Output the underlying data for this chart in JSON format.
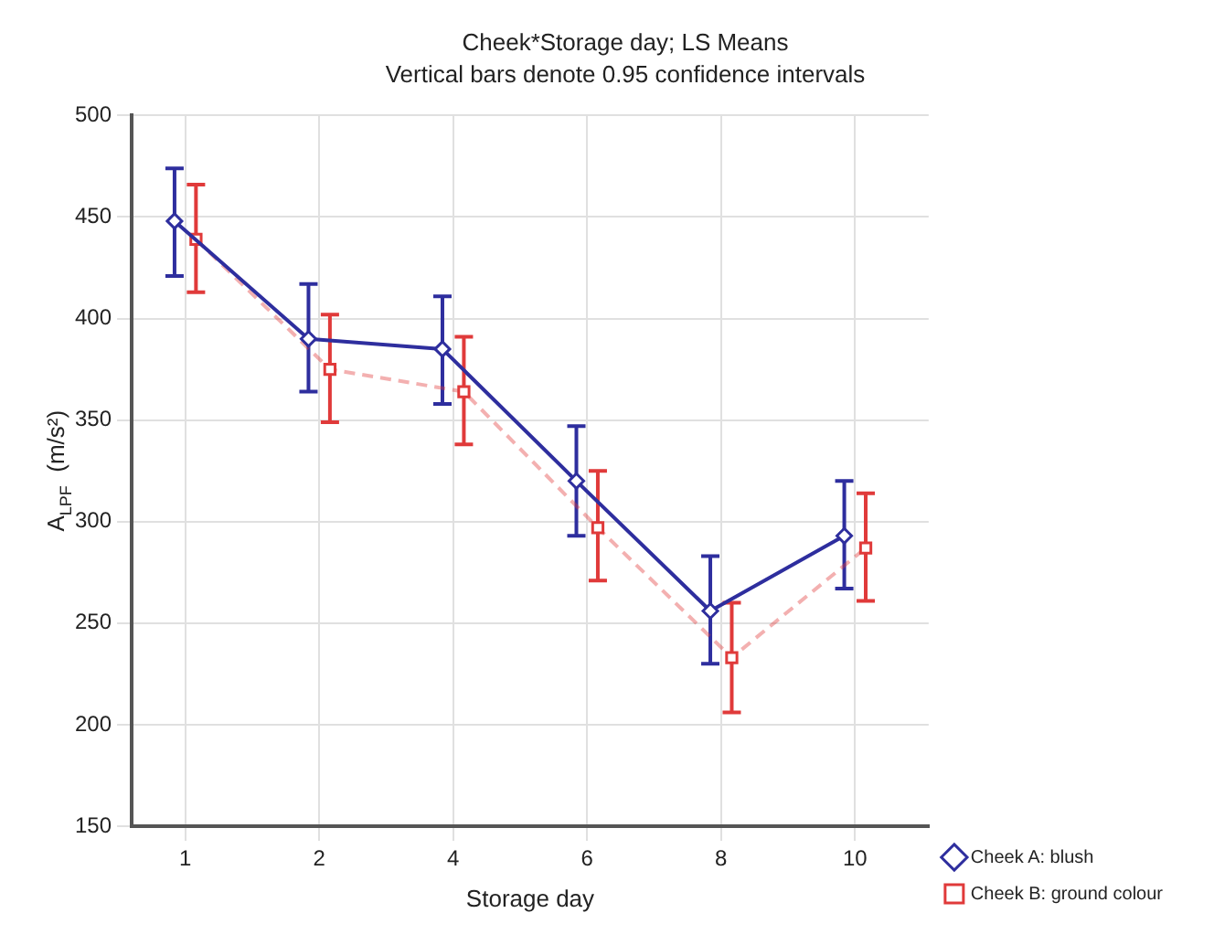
{
  "chart_data": {
    "type": "line",
    "title": "Cheek*Storage day; LS Means",
    "subtitle": "Vertical bars denote 0.95 confidence intervals",
    "xlabel": "Storage day",
    "ylabel": "A$_{LPF}$  (m/s²)",
    "categories": [
      "1",
      "2",
      "4",
      "6",
      "8",
      "10"
    ],
    "ylim": [
      150,
      500
    ],
    "yticks": [
      150,
      200,
      250,
      300,
      350,
      400,
      450,
      500
    ],
    "grid": true,
    "legend": "bottom right",
    "series": [
      {
        "name": "Cheek A: blush",
        "color": "#2e2e9e",
        "marker": "diamond",
        "line_style": "solid",
        "values": [
          448,
          390,
          385,
          320,
          256,
          293
        ],
        "errors": [
          [
            421,
            474
          ],
          [
            364,
            417
          ],
          [
            358,
            411
          ],
          [
            293,
            347
          ],
          [
            230,
            283
          ],
          [
            267,
            320
          ]
        ]
      },
      {
        "name": "Cheek B: ground colour",
        "color": "#e03a3a",
        "marker": "square",
        "line_style": "dashed",
        "values": [
          439,
          375,
          364,
          297,
          233,
          287
        ],
        "errors": [
          [
            413,
            466
          ],
          [
            349,
            402
          ],
          [
            338,
            391
          ],
          [
            271,
            325
          ],
          [
            206,
            260
          ],
          [
            261,
            314
          ]
        ]
      }
    ]
  }
}
